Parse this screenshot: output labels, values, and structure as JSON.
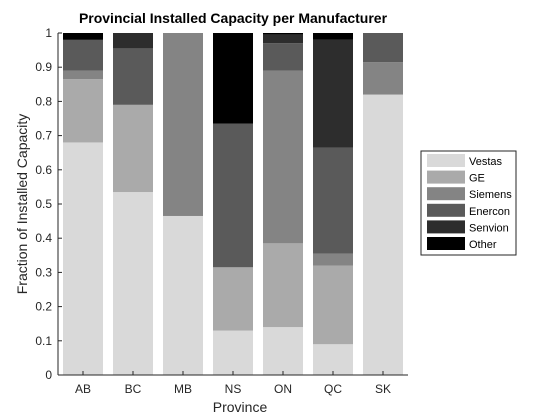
{
  "chart_data": {
    "type": "bar",
    "stacked": true,
    "title": "Provincial Installed Capacity per Manufacturer",
    "xlabel": "Province",
    "ylabel": "Fraction of Installed Capacity",
    "ylim": [
      0,
      1
    ],
    "yticks": [
      "0",
      "0.1",
      "0.2",
      "0.3",
      "0.4",
      "0.5",
      "0.6",
      "0.7",
      "0.8",
      "0.9",
      "1"
    ],
    "categories": [
      "AB",
      "BC",
      "MB",
      "NS",
      "ON",
      "QC",
      "SK"
    ],
    "legend_position": "right",
    "grid": false,
    "series": [
      {
        "name": "Vestas",
        "color": "#d9d9d9",
        "values": [
          0.68,
          0.535,
          0.465,
          0.13,
          0.14,
          0.09,
          0.82
        ]
      },
      {
        "name": "GE",
        "color": "#aaaaaa",
        "values": [
          0.185,
          0.255,
          0.0,
          0.185,
          0.245,
          0.23,
          0.0
        ]
      },
      {
        "name": "Siemens",
        "color": "#848484",
        "values": [
          0.025,
          0.0,
          0.535,
          0.0,
          0.505,
          0.035,
          0.095
        ]
      },
      {
        "name": "Enercon",
        "color": "#5a5a5a",
        "values": [
          0.09,
          0.165,
          0.0,
          0.42,
          0.08,
          0.31,
          0.085
        ]
      },
      {
        "name": "Senvion",
        "color": "#2d2d2d",
        "values": [
          0.0,
          0.045,
          0.0,
          0.0,
          0.025,
          0.315,
          0.0
        ]
      },
      {
        "name": "Other",
        "color": "#000000",
        "values": [
          0.02,
          0.0,
          0.0,
          0.265,
          0.005,
          0.02,
          0.0
        ]
      }
    ]
  }
}
